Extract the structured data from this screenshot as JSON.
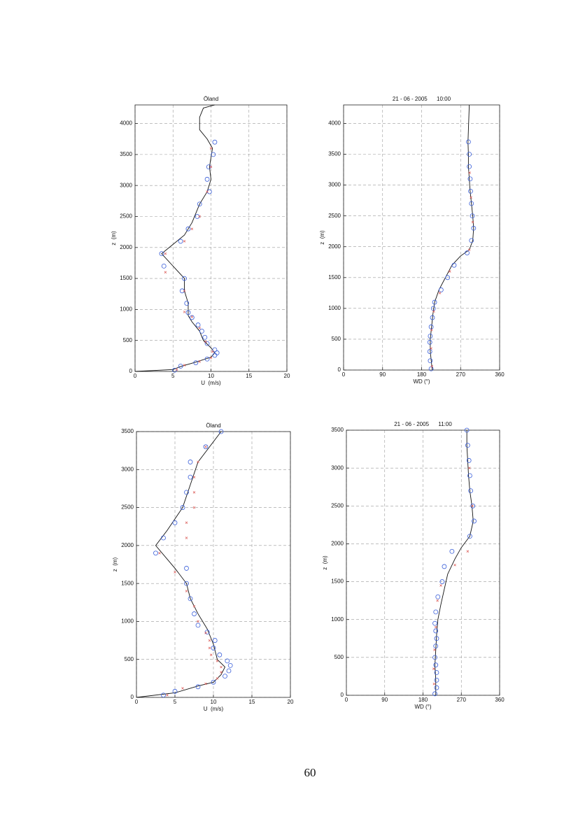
{
  "chart_data": [
    {
      "type": "scatter",
      "title": "Öland",
      "x_label": "U  (m/s)",
      "y_label": "z  (m)",
      "xlim": [
        0,
        20
      ],
      "xticks": [
        0,
        5,
        10,
        15,
        20
      ],
      "ylim": [
        0,
        4300
      ],
      "yticks": [
        0,
        500,
        1000,
        1500,
        2000,
        2500,
        3000,
        3500,
        4000
      ],
      "grid": true,
      "series": [
        {
          "style": "line",
          "color": "#111111",
          "x": [
            0,
            5,
            6,
            8,
            10,
            10.5,
            10,
            9,
            8.5,
            7.5,
            7,
            7,
            6.5,
            6.5,
            5,
            3.5,
            5,
            6.5,
            7.5,
            8.5,
            9.5,
            10,
            9.8,
            10.2,
            9.5,
            8.5,
            8.5,
            9,
            10.5
          ],
          "y": [
            0,
            30,
            80,
            150,
            230,
            300,
            380,
            500,
            650,
            800,
            900,
            1100,
            1300,
            1500,
            1700,
            1900,
            2050,
            2200,
            2400,
            2700,
            2900,
            3100,
            3300,
            3600,
            3750,
            3900,
            4100,
            4250,
            4300
          ]
        },
        {
          "style": "marker",
          "marker": "o",
          "color": "#3a5fd9",
          "x": [
            5.2,
            6,
            8,
            9.5,
            10.5,
            10.8,
            10.5,
            9.5,
            9.2,
            8.8,
            8.3,
            7.5,
            7,
            6.8,
            6.2,
            6.5,
            3.8,
            3.5,
            6,
            7,
            8.2,
            8.5,
            9.8,
            9.5,
            9.7,
            10.3,
            10.5
          ],
          "y": [
            20,
            85,
            140,
            200,
            260,
            300,
            350,
            450,
            550,
            650,
            750,
            870,
            950,
            1100,
            1300,
            1500,
            1700,
            1900,
            2100,
            2300,
            2500,
            2700,
            2900,
            3100,
            3300,
            3500,
            3700
          ]
        },
        {
          "style": "marker",
          "marker": "x",
          "color": "#d9534f",
          "x": [
            5.5,
            6.5,
            8.5,
            10,
            10.2,
            9.3,
            8.5,
            7.5,
            6.5,
            6.5,
            4,
            4,
            6.5,
            7.5,
            8.5,
            9.5,
            10,
            10
          ],
          "y": [
            30,
            100,
            160,
            220,
            320,
            480,
            700,
            880,
            960,
            1300,
            1600,
            1900,
            2100,
            2300,
            2500,
            2900,
            3300,
            3600
          ]
        }
      ]
    },
    {
      "type": "scatter",
      "title": "21 - 06 - 2005      10:00",
      "x_label": "WD (°)",
      "y_label": "z  (m)",
      "xlim": [
        0,
        360
      ],
      "xticks": [
        0,
        90,
        180,
        270,
        360
      ],
      "ylim": [
        0,
        4300
      ],
      "yticks": [
        0,
        500,
        1000,
        1500,
        2000,
        2500,
        3000,
        3500,
        4000
      ],
      "grid": true,
      "series": [
        {
          "style": "line",
          "color": "#111111",
          "x": [
            205,
            203,
            200,
            200,
            203,
            206,
            210,
            220,
            235,
            250,
            270,
            290,
            298,
            300,
            298,
            295,
            292,
            290,
            288,
            288,
            287,
            288,
            289,
            290
          ],
          "y": [
            0,
            100,
            300,
            500,
            700,
            900,
            1100,
            1300,
            1500,
            1700,
            1850,
            1950,
            2100,
            2300,
            2500,
            2700,
            2900,
            3100,
            3300,
            3500,
            3700,
            3900,
            4100,
            4300
          ]
        },
        {
          "style": "marker",
          "marker": "o",
          "color": "#3a5fd9",
          "x": [
            202,
            200,
            199,
            199,
            200,
            202,
            205,
            207,
            210,
            225,
            240,
            255,
            285,
            295,
            300,
            297,
            295,
            293,
            292,
            290,
            290,
            288
          ],
          "y": [
            20,
            150,
            300,
            450,
            550,
            700,
            850,
            1000,
            1100,
            1300,
            1500,
            1700,
            1900,
            2100,
            2300,
            2500,
            2700,
            2900,
            3100,
            3300,
            3500,
            3700
          ]
        },
        {
          "style": "marker",
          "marker": "x",
          "color": "#d9534f",
          "x": [
            204,
            202,
            203,
            208,
            222,
            245,
            290,
            298,
            294,
            291
          ],
          "y": [
            60,
            350,
            650,
            950,
            1250,
            1600,
            1950,
            2400,
            2800,
            3200
          ]
        }
      ]
    },
    {
      "type": "scatter",
      "title": "Öland",
      "x_label": "U  (m/s)",
      "y_label": "z  (m)",
      "xlim": [
        0,
        20
      ],
      "xticks": [
        0,
        5,
        10,
        15,
        20
      ],
      "ylim": [
        0,
        3500
      ],
      "yticks": [
        0,
        500,
        1000,
        1500,
        2000,
        2500,
        3000,
        3500
      ],
      "grid": true,
      "series": [
        {
          "style": "line",
          "color": "#111111",
          "x": [
            0,
            5,
            8,
            10,
            11,
            11.5,
            10.5,
            10,
            9.2,
            8,
            7,
            6.5,
            5,
            2.5,
            4,
            6,
            7,
            8,
            9.5,
            11
          ],
          "y": [
            0,
            60,
            150,
            200,
            300,
            400,
            500,
            700,
            900,
            1100,
            1300,
            1500,
            1700,
            2000,
            2200,
            2500,
            2800,
            3100,
            3300,
            3500
          ]
        },
        {
          "style": "marker",
          "marker": "o",
          "color": "#3a5fd9",
          "x": [
            3.5,
            5,
            8,
            10,
            11.5,
            12,
            12.2,
            11.8,
            10.8,
            10,
            10.2,
            9.2,
            8,
            7.5,
            7,
            6.5,
            6.5,
            2.5,
            3.5,
            5,
            6,
            6.5,
            7,
            7,
            9,
            11
          ],
          "y": [
            30,
            80,
            140,
            200,
            280,
            350,
            420,
            480,
            560,
            650,
            750,
            860,
            950,
            1100,
            1300,
            1500,
            1700,
            1900,
            2100,
            2300,
            2500,
            2700,
            2900,
            3100,
            3300,
            3500
          ]
        },
        {
          "style": "marker",
          "marker": "x",
          "color": "#d9534f",
          "x": [
            4,
            6,
            9,
            10.5,
            11,
            11,
            10.5,
            9.7,
            9.5,
            9.5,
            9,
            8,
            7.5,
            6.5,
            5,
            3,
            6.5,
            6.5,
            7.5,
            7.5,
            7.5,
            8,
            9
          ],
          "y": [
            30,
            120,
            180,
            250,
            330,
            400,
            480,
            560,
            650,
            750,
            850,
            1000,
            1200,
            1400,
            1650,
            1900,
            2100,
            2300,
            2500,
            2700,
            2900,
            3100,
            3300
          ]
        }
      ]
    },
    {
      "type": "scatter",
      "title": "21 - 06 - 2005      11:00",
      "x_label": "WD (°)",
      "y_label": "z  (m)",
      "xlim": [
        0,
        360
      ],
      "xticks": [
        0,
        90,
        180,
        270,
        360
      ],
      "ylim": [
        0,
        3500
      ],
      "yticks": [
        0,
        500,
        1000,
        1500,
        2000,
        2500,
        3000,
        3500
      ],
      "grid": true,
      "series": [
        {
          "style": "line",
          "color": "#111111",
          "x": [
            210,
            210,
            208,
            210,
            212,
            215,
            222,
            230,
            238,
            255,
            270,
            290,
            298,
            295,
            290,
            287,
            285,
            283,
            283
          ],
          "y": [
            0,
            200,
            400,
            600,
            800,
            1000,
            1200,
            1400,
            1600,
            1800,
            1950,
            2100,
            2300,
            2500,
            2700,
            2900,
            3100,
            3300,
            3500
          ]
        },
        {
          "style": "marker",
          "marker": "o",
          "color": "#3a5fd9",
          "x": [
            208,
            212,
            212,
            212,
            210,
            208,
            210,
            212,
            210,
            208,
            210,
            215,
            225,
            230,
            248,
            290,
            300,
            297,
            292,
            290,
            288,
            285,
            283
          ],
          "y": [
            20,
            100,
            200,
            300,
            400,
            500,
            650,
            750,
            850,
            950,
            1100,
            1300,
            1500,
            1700,
            1900,
            2100,
            2300,
            2500,
            2700,
            2900,
            3100,
            3300,
            3500
          ]
        },
        {
          "style": "marker",
          "marker": "x",
          "color": "#d9534f",
          "x": [
            206,
            205,
            207,
            210,
            214,
            222,
            255,
            285,
            296,
            289
          ],
          "y": [
            150,
            350,
            600,
            900,
            1250,
            1450,
            1720,
            1900,
            2500,
            3000
          ]
        }
      ]
    }
  ],
  "page_number": "60"
}
